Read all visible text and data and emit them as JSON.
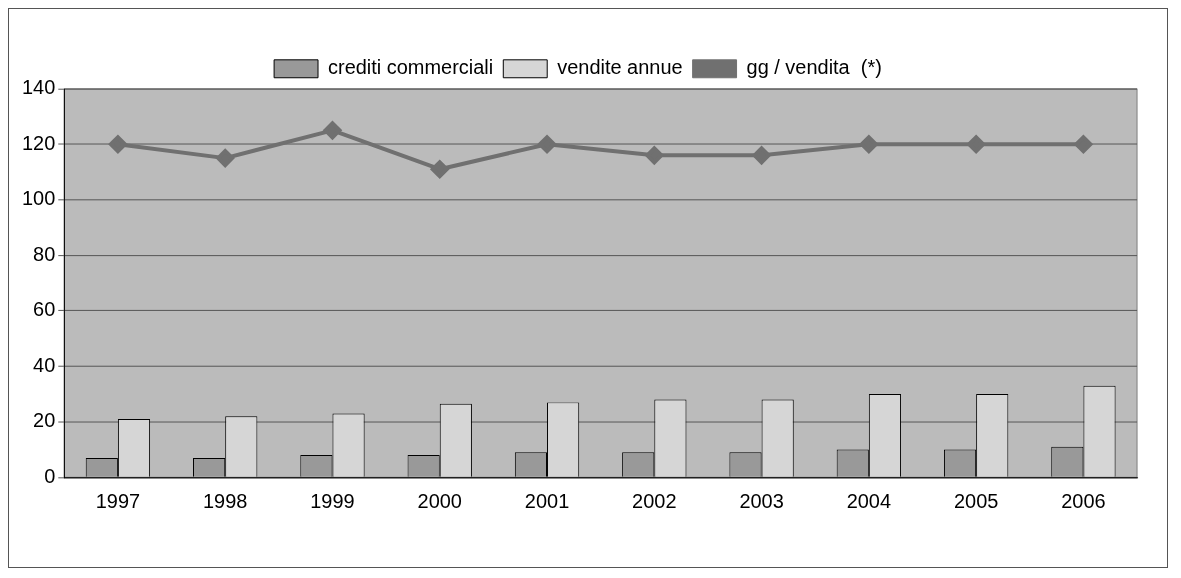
{
  "chart_data": {
    "type": "bar",
    "categories": [
      "1997",
      "1998",
      "1999",
      "2000",
      "2001",
      "2002",
      "2003",
      "2004",
      "2005",
      "2006"
    ],
    "series": [
      {
        "name": "crediti commerciali",
        "color": "#999999",
        "values": [
          7,
          7,
          8,
          8,
          9,
          9,
          9,
          10,
          10,
          11
        ]
      },
      {
        "name": "vendite annue",
        "color": "#d6d6d6",
        "values": [
          21,
          22,
          23,
          26.5,
          27,
          28,
          28,
          30,
          30,
          33
        ]
      },
      {
        "name": "gg / vendita  (*)",
        "type": "line",
        "color": "#707070",
        "marker": "diamond",
        "values": [
          120,
          115,
          125,
          111,
          120,
          116,
          116,
          120,
          120,
          120
        ]
      }
    ],
    "ylim": [
      0,
      140
    ],
    "yticks": [
      0,
      20,
      40,
      60,
      80,
      100,
      120,
      140
    ],
    "grid": "y",
    "legend": "top"
  }
}
